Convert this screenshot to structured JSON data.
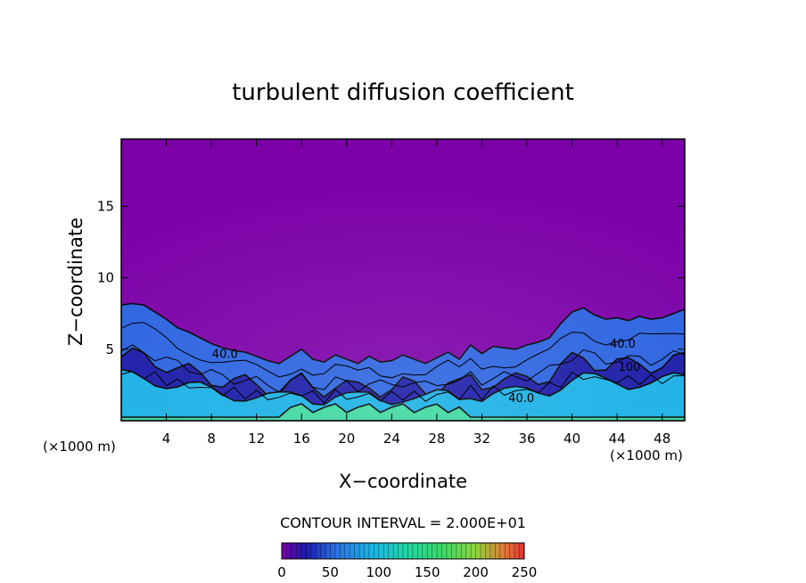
{
  "chart_data": {
    "type": "heatmap",
    "title": "turbulent diffusion coefficient",
    "xlabel": "X−coordinate",
    "ylabel": "Z−coordinate",
    "x_unit_left": "(×1000 m)",
    "x_unit_right": "(×1000 m)",
    "xlim": [
      0,
      50
    ],
    "ylim": [
      0,
      19.7
    ],
    "xticks": [
      4,
      8,
      12,
      16,
      20,
      24,
      28,
      32,
      36,
      40,
      44,
      48
    ],
    "yticks": [
      5,
      10,
      15
    ],
    "contour_interval_text": "CONTOUR INTERVAL = 2.000E+01",
    "contour_labels": [
      {
        "text": "40.0",
        "x": 9.2,
        "z": 4.4
      },
      {
        "text": "40.0",
        "x": 35.5,
        "z": 1.3
      },
      {
        "text": "40.0",
        "x": 44.5,
        "z": 5.1
      },
      {
        "text": "100",
        "x": 45.1,
        "z": 3.5
      }
    ],
    "boundary_top_z": [
      [
        0,
        8.1
      ],
      [
        1,
        8.2
      ],
      [
        2,
        8.1
      ],
      [
        3,
        7.6
      ],
      [
        4,
        7.1
      ],
      [
        5,
        6.5
      ],
      [
        6,
        6.2
      ],
      [
        7,
        5.8
      ],
      [
        8,
        5.4
      ],
      [
        9,
        5.1
      ],
      [
        10,
        4.9
      ],
      [
        11,
        4.8
      ],
      [
        12,
        4.5
      ],
      [
        13,
        4.2
      ],
      [
        14,
        4.0
      ],
      [
        15,
        4.5
      ],
      [
        16,
        5.0
      ],
      [
        17,
        4.3
      ],
      [
        18,
        4.1
      ],
      [
        19,
        4.6
      ],
      [
        20,
        4.3
      ],
      [
        21,
        4.0
      ],
      [
        22,
        4.5
      ],
      [
        23,
        4.1
      ],
      [
        24,
        4.2
      ],
      [
        25,
        4.6
      ],
      [
        26,
        4.3
      ],
      [
        27,
        4.0
      ],
      [
        28,
        4.4
      ],
      [
        29,
        4.8
      ],
      [
        30,
        4.3
      ],
      [
        31,
        5.3
      ],
      [
        32,
        4.7
      ],
      [
        33,
        5.2
      ],
      [
        34,
        5.1
      ],
      [
        35,
        5.0
      ],
      [
        36,
        5.3
      ],
      [
        37,
        5.5
      ],
      [
        38,
        5.8
      ],
      [
        39,
        6.8
      ],
      [
        40,
        7.6
      ],
      [
        41,
        7.9
      ],
      [
        42,
        7.4
      ],
      [
        43,
        7.1
      ],
      [
        44,
        7.2
      ],
      [
        45,
        7.0
      ],
      [
        46,
        7.3
      ],
      [
        47,
        7.1
      ],
      [
        48,
        7.2
      ],
      [
        49,
        7.5
      ],
      [
        50,
        7.8
      ]
    ],
    "colorbar": {
      "min": 0,
      "max": 250,
      "tick_labels": [
        "0",
        "50",
        "100",
        "150",
        "200",
        "250"
      ],
      "tick_values": [
        0,
        50,
        100,
        150,
        200,
        250
      ],
      "stops": [
        {
          "v": 0,
          "color": "#7b00a8"
        },
        {
          "v": 25,
          "color": "#1a1ab0"
        },
        {
          "v": 55,
          "color": "#2a6fe0"
        },
        {
          "v": 95,
          "color": "#19b8e6"
        },
        {
          "v": 130,
          "color": "#20d8a0"
        },
        {
          "v": 165,
          "color": "#3cd86a"
        },
        {
          "v": 200,
          "color": "#8fd43c"
        },
        {
          "v": 230,
          "color": "#e07838"
        },
        {
          "v": 250,
          "color": "#e03030"
        }
      ]
    },
    "colors": {
      "background_field": "#7b00a8",
      "boundary_layer_base": "#2a62e0",
      "low_layer": "#19b0e6",
      "high_patch": "#3cd8a0",
      "deep_patch": "#1a1aa8"
    },
    "grid": false
  }
}
